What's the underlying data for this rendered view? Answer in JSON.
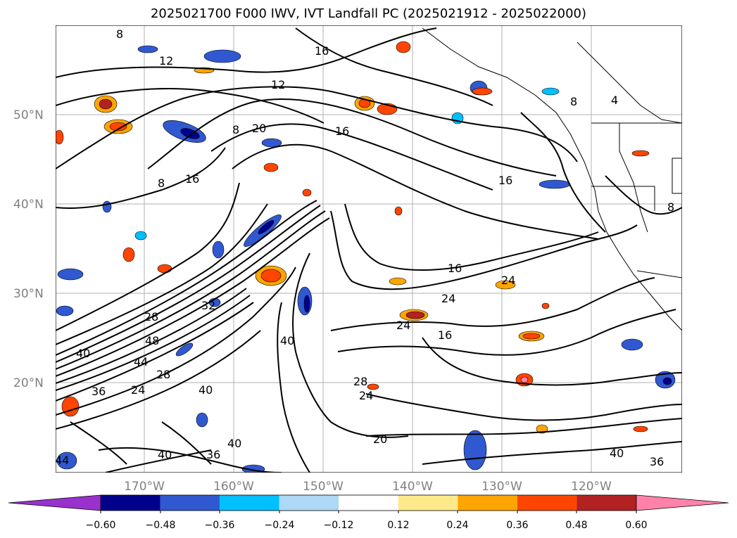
{
  "title": "2025021700 F000 IWV, IVT Landfall PC (2025021912 - 2025022000)",
  "map": {
    "lat_ticks": [
      "50°N",
      "40°N",
      "30°N",
      "20°N"
    ],
    "lon_ticks": [
      "170°W",
      "160°W",
      "150°W",
      "140°W",
      "130°W",
      "120°W"
    ],
    "contour_labels": [
      "8",
      "12",
      "16",
      "12",
      "20",
      "16",
      "8",
      "16",
      "16",
      "8",
      "4",
      "8",
      "16",
      "24",
      "24",
      "24",
      "16",
      "28",
      "48",
      "32",
      "40",
      "44",
      "28",
      "36",
      "24",
      "40",
      "40",
      "28",
      "24",
      "40",
      "36",
      "20",
      "40",
      "36",
      "44",
      "40",
      "8"
    ]
  },
  "colorbar": {
    "labels": [
      "−0.60",
      "−0.48",
      "−0.36",
      "−0.24",
      "−0.12",
      "0.12",
      "0.24",
      "0.36",
      "0.48",
      "0.60"
    ],
    "colors": {
      "under": "#9932cc",
      "bins": [
        "#00008b",
        "#3058d0",
        "#00bfff",
        "#add8f6",
        "#ffffff",
        "#fde98a",
        "#ffa500",
        "#ff4500",
        "#b22222"
      ],
      "over": "#ff82ab"
    }
  }
}
